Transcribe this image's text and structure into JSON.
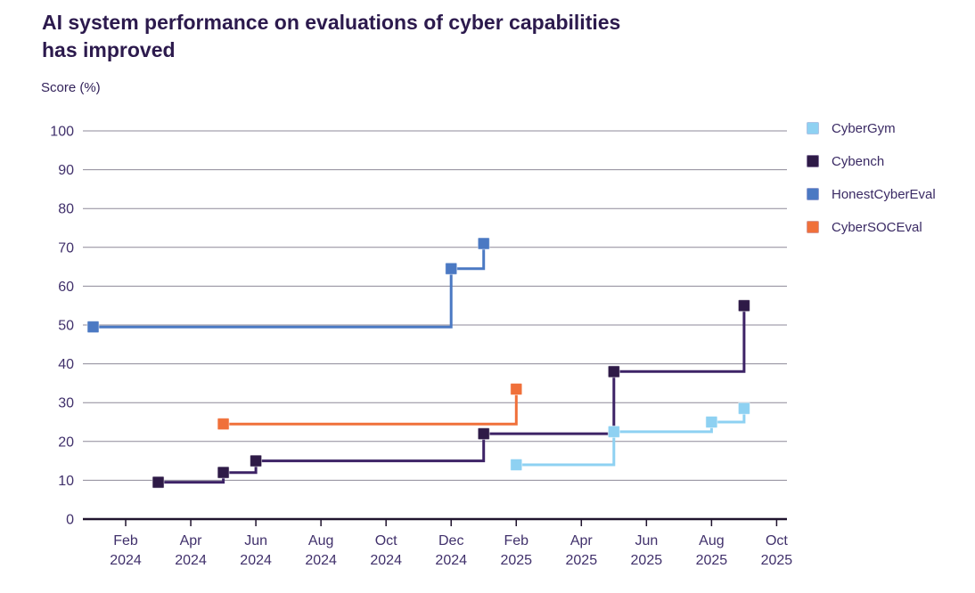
{
  "header": {
    "title": "AI system performance on evaluations of cyber capabilities\nhas improved"
  },
  "chart_data": {
    "type": "line",
    "step_style": "step-after",
    "title": "AI system performance on evaluations of cyber capabilities has improved",
    "ylabel": "Score (%)",
    "ylim": [
      0,
      100
    ],
    "y_ticks": [
      0,
      10,
      20,
      30,
      40,
      50,
      60,
      70,
      80,
      90,
      100
    ],
    "x_ticks": [
      "Feb 2024",
      "Apr 2024",
      "Jun 2024",
      "Aug 2024",
      "Oct 2024",
      "Dec 2024",
      "Feb 2025",
      "Apr 2025",
      "Jun 2025",
      "Aug 2025",
      "Oct 2025"
    ],
    "grid": "horizontal",
    "legend_position": "top-right",
    "series": [
      {
        "name": "CyberGym",
        "color": "#8ed1f2",
        "points": [
          {
            "date": "Feb 2025",
            "value": 14
          },
          {
            "date": "May 2025",
            "value": 22.5
          },
          {
            "date": "Aug 2025",
            "value": 25
          },
          {
            "date": "Sep 2025",
            "value": 28.5
          }
        ]
      },
      {
        "name": "Cybench",
        "color": "#2e1a47",
        "line_color": "#3d2366",
        "points": [
          {
            "date": "Mar 2024",
            "value": 9.5
          },
          {
            "date": "May 2024",
            "value": 12
          },
          {
            "date": "Jun 2024",
            "value": 15
          },
          {
            "date": "Jan 2025",
            "value": 22
          },
          {
            "date": "May 2025",
            "value": 38
          },
          {
            "date": "Sep 2025",
            "value": 55
          }
        ]
      },
      {
        "name": "HonestCyberEval",
        "color": "#4b79c3",
        "points": [
          {
            "date": "Jan 2024",
            "value": 49.5
          },
          {
            "date": "Dec 2024",
            "value": 64.5
          },
          {
            "date": "Jan 2025",
            "value": 71
          }
        ]
      },
      {
        "name": "CyberSOCEval",
        "color": "#f0703a",
        "points": [
          {
            "date": "May 2024",
            "value": 24.5
          },
          {
            "date": "Feb 2025",
            "value": 33.5
          }
        ]
      }
    ]
  },
  "colors": {
    "title_text": "#2c1a4d",
    "tick_text": "#40306b",
    "gridline": "#8d8998",
    "axis_line": "#20142e",
    "background": "#ffffff"
  }
}
